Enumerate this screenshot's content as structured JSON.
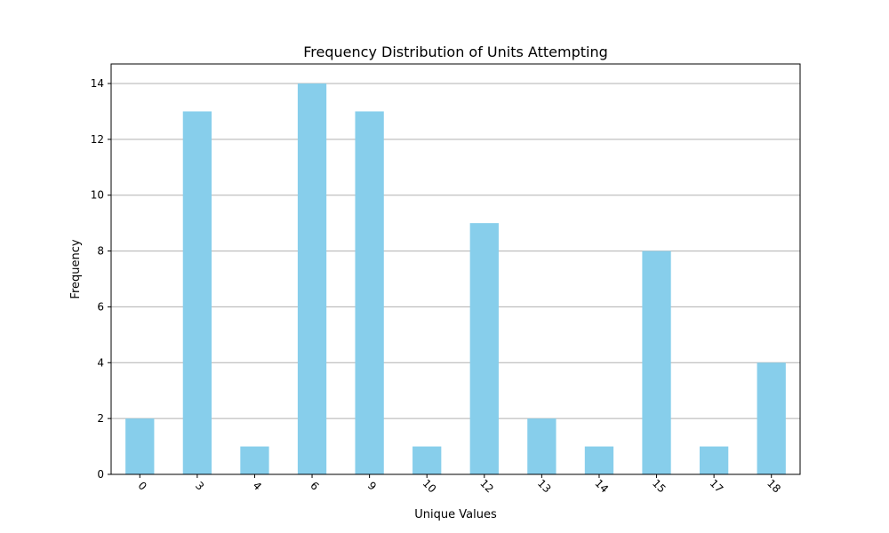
{
  "chart_data": {
    "type": "bar",
    "title": "Frequency Distribution of Units Attempting",
    "xlabel": "Unique Values",
    "ylabel": "Frequency",
    "categories": [
      "0",
      "3",
      "4",
      "6",
      "9",
      "10",
      "12",
      "13",
      "14",
      "15",
      "17",
      "18"
    ],
    "values": [
      2,
      13,
      1,
      14,
      13,
      1,
      9,
      2,
      1,
      8,
      1,
      4
    ],
    "ylim": [
      0,
      14.7
    ],
    "yticks": [
      0,
      2,
      4,
      6,
      8,
      10,
      12,
      14
    ],
    "grid": "horizontal",
    "bar_color": "#87CEEB",
    "x_tick_rotation": 45
  }
}
